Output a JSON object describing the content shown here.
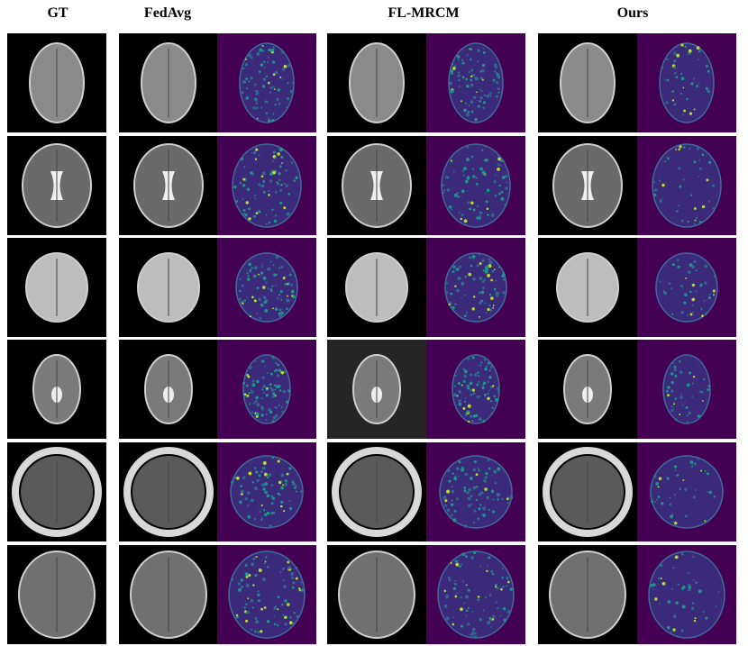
{
  "header": {
    "columns": [
      "GT",
      "FedAvg",
      "FL-MRCM",
      "Ours"
    ]
  }
}
